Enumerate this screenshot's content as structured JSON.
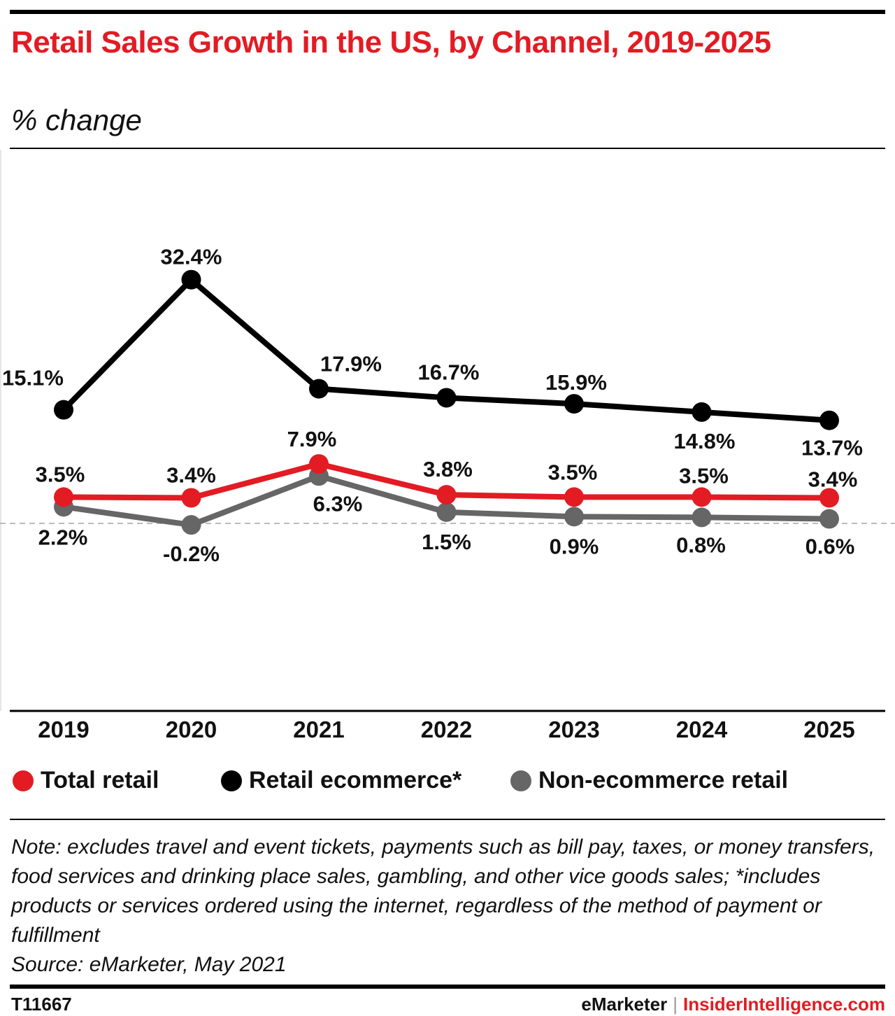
{
  "header": {
    "title": "Retail Sales Growth in the US, by Channel, 2019-2025",
    "subtitle": "% change"
  },
  "chart_data": {
    "type": "line",
    "title": "Retail Sales Growth in the US, by Channel, 2019-2025",
    "subtitle": "% change",
    "categories": [
      "2019",
      "2020",
      "2021",
      "2022",
      "2023",
      "2024",
      "2025"
    ],
    "series": [
      {
        "name": "Retail ecommerce*",
        "color": "#000000",
        "values": [
          15.1,
          32.4,
          17.9,
          16.7,
          15.9,
          14.8,
          13.7
        ],
        "labels": [
          "15.1%",
          "32.4%",
          "17.9%",
          "16.7%",
          "15.9%",
          "14.8%",
          "13.7%"
        ]
      },
      {
        "name": "Non-ecommerce retail",
        "color": "#666666",
        "values": [
          2.2,
          -0.2,
          6.3,
          1.5,
          0.9,
          0.8,
          0.6
        ],
        "labels": [
          "2.2%",
          "-0.2%",
          "6.3%",
          "1.5%",
          "0.9%",
          "0.8%",
          "0.6%"
        ]
      },
      {
        "name": "Total retail",
        "color": "#e31b23",
        "values": [
          3.5,
          3.4,
          7.9,
          3.8,
          3.5,
          3.5,
          3.4
        ],
        "labels": [
          "3.5%",
          "3.4%",
          "7.9%",
          "3.8%",
          "3.5%",
          "3.5%",
          "3.4%"
        ]
      }
    ],
    "zero_line": "dashed",
    "grid": false
  },
  "legend": {
    "items": [
      {
        "label": "Total retail",
        "color": "#e31b23"
      },
      {
        "label": "Retail ecommerce*",
        "color": "#000000"
      },
      {
        "label": "Non-ecommerce retail",
        "color": "#666666"
      }
    ]
  },
  "footer": {
    "note": "Note: excludes travel and event tickets, payments such as bill pay, taxes, or money transfers, food services and drinking place sales, gambling, and other vice goods sales; *includes products or services ordered using the internet, regardless of the method of payment or fulfillment",
    "source": "Source: eMarketer, May 2021",
    "chart_id": "T11667",
    "brand_primary": "eMarketer",
    "brand_separator": "|",
    "brand_secondary": "InsiderIntelligence.com"
  }
}
